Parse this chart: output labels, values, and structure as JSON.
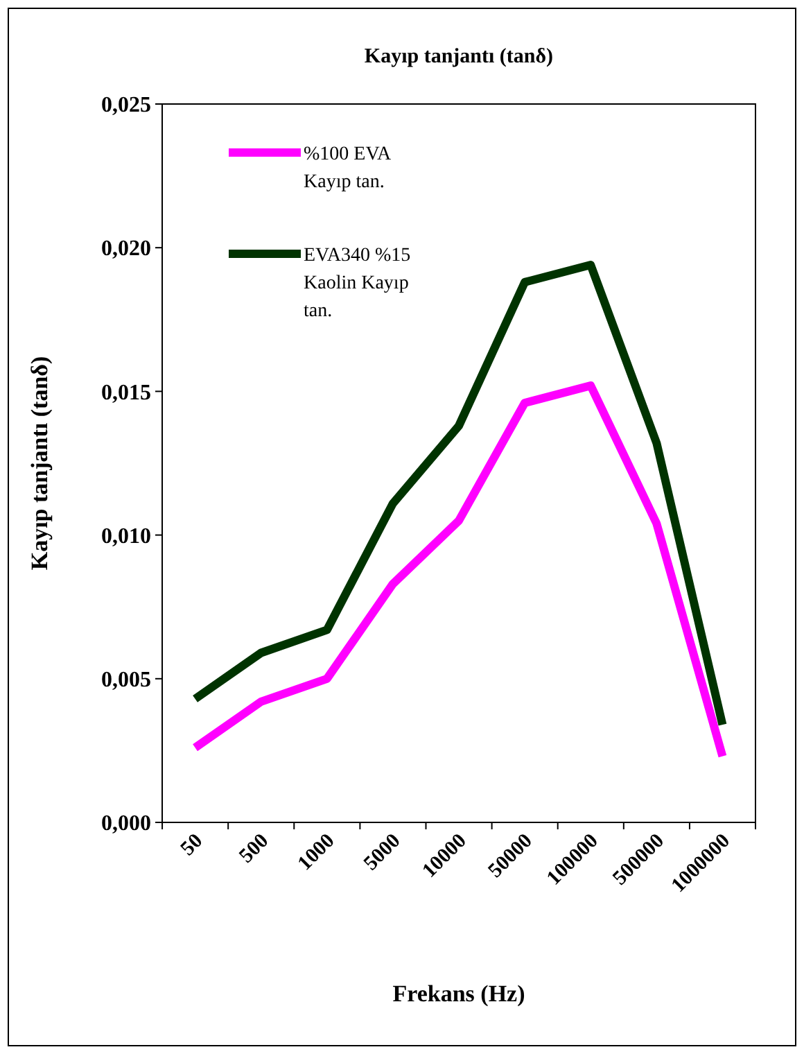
{
  "chart_data": {
    "type": "line",
    "title": "Kayıp tanjantı (tanδ)",
    "xlabel": "Frekans (Hz)",
    "ylabel": "Kayıp tanjantı (tanδ)",
    "categories": [
      "50",
      "500",
      "1000",
      "5000",
      "10000",
      "50000",
      "100000",
      "500000",
      "1000000"
    ],
    "series": [
      {
        "name": "%100 EVA Kayıp tan.",
        "color": "#ff00ff",
        "values": [
          0.0026,
          0.0042,
          0.005,
          0.0083,
          0.0105,
          0.0146,
          0.0152,
          0.0104,
          0.0023
        ]
      },
      {
        "name": "EVA340 %15 Kaolin Kayıp tan.",
        "color": "#003300",
        "values": [
          0.0043,
          0.0059,
          0.0067,
          0.0111,
          0.0138,
          0.0188,
          0.0194,
          0.0132,
          0.0034
        ]
      }
    ],
    "ylim": [
      0,
      0.025
    ],
    "yticks": [
      {
        "value": 0,
        "label": "0,000"
      },
      {
        "value": 0.005,
        "label": "0,005"
      },
      {
        "value": 0.01,
        "label": "0,010"
      },
      {
        "value": 0.015,
        "label": "0,015"
      },
      {
        "value": 0.02,
        "label": "0,020"
      },
      {
        "value": 0.025,
        "label": "0,025"
      }
    ],
    "legend": "top left",
    "grid": false,
    "marker": "none",
    "line_style": "solid"
  }
}
